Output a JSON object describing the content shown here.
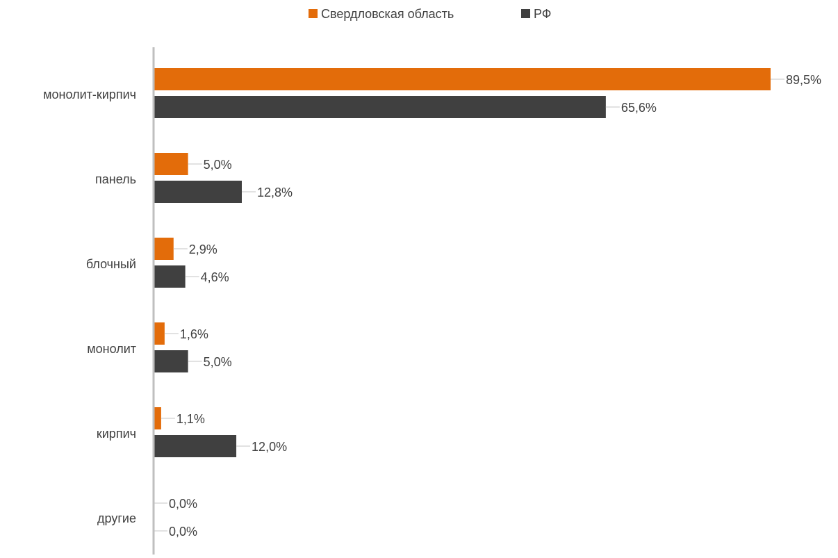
{
  "chart_data": {
    "type": "bar",
    "orientation": "horizontal",
    "categories": [
      "монолит-кирпич",
      "панель",
      "блочный",
      "монолит",
      "кирпич",
      "другие"
    ],
    "series": [
      {
        "name": "Свердловская область",
        "color": "#E36C0A",
        "values": [
          89.5,
          5.0,
          2.9,
          1.6,
          1.1,
          0.0
        ],
        "labels": [
          "89,5%",
          "5,0%",
          "2,9%",
          "1,6%",
          "1,1%",
          "0,0%"
        ]
      },
      {
        "name": "РФ",
        "color": "#404040",
        "values": [
          65.6,
          12.8,
          4.6,
          5.0,
          12.0,
          0.0
        ],
        "labels": [
          "65,6%",
          "12,8%",
          "4,6%",
          "5,0%",
          "12,0%",
          "0,0%"
        ]
      }
    ],
    "xlim": [
      0,
      89.5
    ],
    "grid": false,
    "legend_position": "top"
  }
}
